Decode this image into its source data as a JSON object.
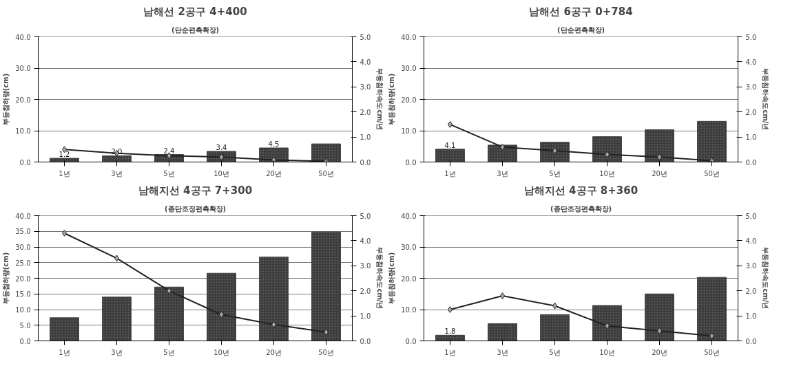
{
  "chart_data": [
    {
      "type": "bar",
      "title": "남해선 2공구 4+400",
      "subtitle": "(단순편측확장)",
      "ylabel": "부등침하량(cm)",
      "y2label": "부등침하속도cm/년",
      "categories": [
        "1년",
        "3년",
        "5년",
        "10년",
        "20년",
        "50년"
      ],
      "ylim": [
        0,
        40
      ],
      "yticks": [
        {
          "value": 0,
          "label": "0.0"
        },
        {
          "value": 10,
          "label": "10.0"
        },
        {
          "value": 20,
          "label": "20.0"
        },
        {
          "value": 30,
          "label": "30.0"
        },
        {
          "value": 40,
          "label": "40.0"
        }
      ],
      "y2lim": [
        0,
        5
      ],
      "y2ticks": [
        {
          "value": 0,
          "label": "0.0"
        },
        {
          "value": 1,
          "label": "1.0"
        },
        {
          "value": 2,
          "label": "2.0"
        },
        {
          "value": 3,
          "label": "3.0"
        },
        {
          "value": 4,
          "label": "4.0"
        },
        {
          "value": 5,
          "label": "5.0"
        }
      ],
      "grid": "y",
      "marker": "diamond",
      "series": [
        {
          "color": "#3c3c3c",
          "values": [
            1.2,
            2.0,
            2.4,
            3.4,
            4.5,
            5.8
          ],
          "value_labels": [
            "1.2",
            "2.0",
            "2.4",
            "3.4",
            "4.5",
            null
          ]
        },
        {
          "type": "line",
          "axis": "y2",
          "color": "#222222",
          "values": [
            0.5,
            0.35,
            0.25,
            0.2,
            0.08,
            0.03
          ]
        }
      ]
    },
    {
      "type": "bar",
      "title": "남해선 6공구 0+784",
      "subtitle": "(단순편측확장)",
      "ylabel": "부등침하량(cm)",
      "y2label": "부등침하속도cm/년",
      "categories": [
        "1년",
        "3년",
        "5년",
        "10년",
        "20년",
        "50년"
      ],
      "ylim": [
        0,
        40
      ],
      "yticks": [
        {
          "value": 0,
          "label": "0.0"
        },
        {
          "value": 10,
          "label": "10.0"
        },
        {
          "value": 20,
          "label": "20.0"
        },
        {
          "value": 30,
          "label": "30.0"
        },
        {
          "value": 40,
          "label": "40.0"
        }
      ],
      "y2lim": [
        0,
        5
      ],
      "y2ticks": [
        {
          "value": 0,
          "label": "0.0"
        },
        {
          "value": 1,
          "label": "1.0"
        },
        {
          "value": 2,
          "label": "2.0"
        },
        {
          "value": 3,
          "label": "3.0"
        },
        {
          "value": 4,
          "label": "4.0"
        },
        {
          "value": 5,
          "label": "5.0"
        }
      ],
      "grid": "y",
      "marker": "diamond",
      "series": [
        {
          "color": "#3c3c3c",
          "values": [
            4.1,
            5.4,
            6.3,
            8.1,
            10.3,
            13.0
          ],
          "value_labels": [
            "4.1",
            null,
            null,
            null,
            null,
            null
          ]
        },
        {
          "type": "line",
          "axis": "y2",
          "color": "#222222",
          "values": [
            1.5,
            0.6,
            0.45,
            0.3,
            0.2,
            0.05
          ]
        }
      ]
    },
    {
      "type": "bar",
      "title": "남해지선 4공구 7+300",
      "subtitle": "(종단조정편측확장)",
      "ylabel": "부등침하량(cm)",
      "y2label": "부등침하속도cm/년",
      "categories": [
        "1년",
        "3년",
        "5년",
        "10년",
        "20년",
        "50년"
      ],
      "ylim": [
        0,
        40
      ],
      "yticks": [
        {
          "value": 0,
          "label": "0.0"
        },
        {
          "value": 5,
          "label": "5.0"
        },
        {
          "value": 10,
          "label": "10.0"
        },
        {
          "value": 15,
          "label": "15.0"
        },
        {
          "value": 20,
          "label": "20.0"
        },
        {
          "value": 25,
          "label": "25.0"
        },
        {
          "value": 30,
          "label": "30.0"
        },
        {
          "value": 35,
          "label": "35.0"
        },
        {
          "value": 40,
          "label": "40.0"
        }
      ],
      "y2lim": [
        0,
        5
      ],
      "y2ticks": [
        {
          "value": 0,
          "label": "0.0"
        },
        {
          "value": 1,
          "label": "1.0"
        },
        {
          "value": 2,
          "label": "2.0"
        },
        {
          "value": 3,
          "label": "3.0"
        },
        {
          "value": 4,
          "label": "4.0"
        },
        {
          "value": 5,
          "label": "5.0"
        }
      ],
      "grid": "y",
      "marker": "diamond",
      "series": [
        {
          "color": "#3c3c3c",
          "values": [
            7.4,
            14.0,
            17.2,
            21.6,
            26.8,
            34.8
          ]
        },
        {
          "type": "line",
          "axis": "y2",
          "color": "#222222",
          "values": [
            4.3,
            3.3,
            2.0,
            1.05,
            0.65,
            0.35
          ]
        }
      ]
    },
    {
      "type": "bar",
      "title": "남해지선 4공구 8+360",
      "subtitle": "(종단조정편측확장)",
      "ylabel": "부등침하량(cm)",
      "y2label": "부등침하속도cm/년",
      "categories": [
        "1년",
        "3년",
        "5년",
        "10년",
        "20년",
        "50년"
      ],
      "ylim": [
        0,
        40
      ],
      "yticks": [
        {
          "value": 0,
          "label": "0.0"
        },
        {
          "value": 10,
          "label": "10.0"
        },
        {
          "value": 20,
          "label": "20.0"
        },
        {
          "value": 30,
          "label": "30.0"
        },
        {
          "value": 40,
          "label": "40.0"
        }
      ],
      "y2lim": [
        0,
        5
      ],
      "y2ticks": [
        {
          "value": 0,
          "label": "0.0"
        },
        {
          "value": 1,
          "label": "1.0"
        },
        {
          "value": 2,
          "label": "2.0"
        },
        {
          "value": 3,
          "label": "3.0"
        },
        {
          "value": 4,
          "label": "4.0"
        },
        {
          "value": 5,
          "label": "5.0"
        }
      ],
      "grid": "y",
      "marker": "diamond",
      "series": [
        {
          "color": "#3c3c3c",
          "values": [
            1.8,
            5.5,
            8.4,
            11.3,
            15.0,
            20.3
          ],
          "value_labels": [
            "1.8",
            null,
            null,
            null,
            null,
            null
          ]
        },
        {
          "type": "line",
          "axis": "y2",
          "color": "#222222",
          "values": [
            1.25,
            1.8,
            1.4,
            0.6,
            0.4,
            0.2
          ]
        }
      ]
    }
  ]
}
